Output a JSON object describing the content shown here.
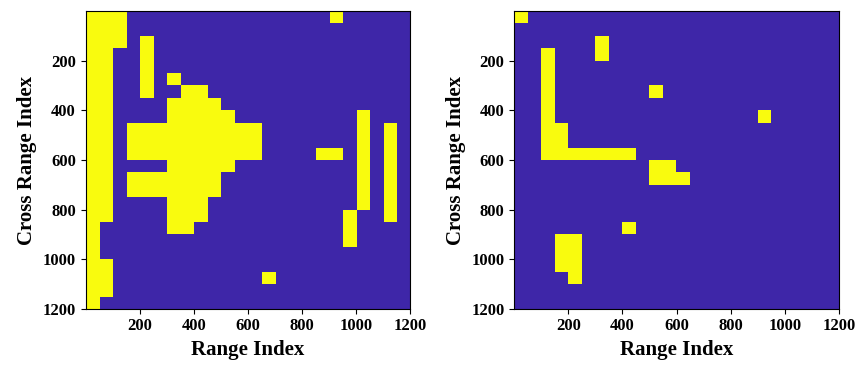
{
  "chart_data": [
    {
      "type": "heatmap",
      "xlabel": "Range Index",
      "ylabel": "Cross Range Index",
      "xlim": [
        0,
        1200
      ],
      "ylim": [
        1200,
        0
      ],
      "xticks": [
        200,
        400,
        600,
        800,
        1000,
        1200
      ],
      "yticks": [
        200,
        400,
        600,
        800,
        1000,
        1200
      ],
      "colors": [
        "#3e26a8",
        "#f9fb0e"
      ],
      "cells": [
        [
          1,
          1,
          1,
          0,
          0,
          0,
          0,
          0,
          0,
          0,
          0,
          0,
          0,
          0,
          0,
          0,
          0,
          0,
          1,
          0,
          0,
          0,
          0,
          0
        ],
        [
          1,
          1,
          1,
          0,
          0,
          0,
          0,
          0,
          0,
          0,
          0,
          0,
          0,
          0,
          0,
          0,
          0,
          0,
          0,
          0,
          0,
          0,
          0,
          0
        ],
        [
          1,
          1,
          1,
          0,
          1,
          0,
          0,
          0,
          0,
          0,
          0,
          0,
          0,
          0,
          0,
          0,
          0,
          0,
          0,
          0,
          0,
          0,
          0,
          0
        ],
        [
          1,
          1,
          0,
          0,
          1,
          0,
          0,
          0,
          0,
          0,
          0,
          0,
          0,
          0,
          0,
          0,
          0,
          0,
          0,
          0,
          0,
          0,
          0,
          0
        ],
        [
          1,
          1,
          0,
          0,
          1,
          0,
          0,
          0,
          0,
          0,
          0,
          0,
          0,
          0,
          0,
          0,
          0,
          0,
          0,
          0,
          0,
          0,
          0,
          0
        ],
        [
          1,
          1,
          0,
          0,
          1,
          0,
          1,
          0,
          0,
          0,
          0,
          0,
          0,
          0,
          0,
          0,
          0,
          0,
          0,
          0,
          0,
          0,
          0,
          0
        ],
        [
          1,
          1,
          0,
          0,
          1,
          0,
          0,
          1,
          1,
          0,
          0,
          0,
          0,
          0,
          0,
          0,
          0,
          0,
          0,
          0,
          0,
          0,
          0,
          0
        ],
        [
          1,
          1,
          0,
          0,
          0,
          0,
          1,
          1,
          1,
          1,
          0,
          0,
          0,
          0,
          0,
          0,
          0,
          0,
          0,
          0,
          0,
          0,
          0,
          0
        ],
        [
          1,
          1,
          0,
          0,
          0,
          0,
          1,
          1,
          1,
          1,
          1,
          0,
          0,
          0,
          0,
          0,
          0,
          0,
          0,
          0,
          1,
          0,
          0,
          0
        ],
        [
          1,
          1,
          0,
          1,
          1,
          1,
          1,
          1,
          1,
          1,
          1,
          1,
          1,
          0,
          0,
          0,
          0,
          0,
          0,
          0,
          1,
          0,
          1,
          0
        ],
        [
          1,
          1,
          0,
          1,
          1,
          1,
          1,
          1,
          1,
          1,
          1,
          1,
          1,
          0,
          0,
          0,
          0,
          0,
          0,
          0,
          1,
          0,
          1,
          0
        ],
        [
          1,
          1,
          0,
          1,
          1,
          1,
          1,
          1,
          1,
          1,
          1,
          1,
          1,
          0,
          0,
          0,
          0,
          1,
          1,
          0,
          1,
          0,
          1,
          0
        ],
        [
          1,
          1,
          0,
          0,
          0,
          0,
          1,
          1,
          1,
          1,
          1,
          0,
          0,
          0,
          0,
          0,
          0,
          0,
          0,
          0,
          1,
          0,
          1,
          0
        ],
        [
          1,
          1,
          0,
          1,
          1,
          1,
          1,
          1,
          1,
          1,
          0,
          0,
          0,
          0,
          0,
          0,
          0,
          0,
          0,
          0,
          1,
          0,
          1,
          0
        ],
        [
          1,
          1,
          0,
          1,
          1,
          1,
          1,
          1,
          1,
          1,
          0,
          0,
          0,
          0,
          0,
          0,
          0,
          0,
          0,
          0,
          1,
          0,
          1,
          0
        ],
        [
          1,
          1,
          0,
          0,
          0,
          0,
          1,
          1,
          1,
          0,
          0,
          0,
          0,
          0,
          0,
          0,
          0,
          0,
          0,
          0,
          1,
          0,
          1,
          0
        ],
        [
          1,
          1,
          0,
          0,
          0,
          0,
          1,
          1,
          1,
          0,
          0,
          0,
          0,
          0,
          0,
          0,
          0,
          0,
          0,
          1,
          0,
          0,
          1,
          0
        ],
        [
          1,
          0,
          0,
          0,
          0,
          0,
          1,
          1,
          0,
          0,
          0,
          0,
          0,
          0,
          0,
          0,
          0,
          0,
          0,
          1,
          0,
          0,
          0,
          0
        ],
        [
          1,
          0,
          0,
          0,
          0,
          0,
          0,
          0,
          0,
          0,
          0,
          0,
          0,
          0,
          0,
          0,
          0,
          0,
          0,
          1,
          0,
          0,
          0,
          0
        ],
        [
          1,
          0,
          0,
          0,
          0,
          0,
          0,
          0,
          0,
          0,
          0,
          0,
          0,
          0,
          0,
          0,
          0,
          0,
          0,
          0,
          0,
          0,
          0,
          0
        ],
        [
          1,
          1,
          0,
          0,
          0,
          0,
          0,
          0,
          0,
          0,
          0,
          0,
          0,
          0,
          0,
          0,
          0,
          0,
          0,
          0,
          0,
          0,
          0,
          0
        ],
        [
          1,
          1,
          0,
          0,
          0,
          0,
          0,
          0,
          0,
          0,
          0,
          0,
          0,
          1,
          0,
          0,
          0,
          0,
          0,
          0,
          0,
          0,
          0,
          0
        ],
        [
          1,
          1,
          0,
          0,
          0,
          0,
          0,
          0,
          0,
          0,
          0,
          0,
          0,
          0,
          0,
          0,
          0,
          0,
          0,
          0,
          0,
          0,
          0,
          0
        ],
        [
          1,
          0,
          0,
          0,
          0,
          0,
          0,
          0,
          0,
          0,
          0,
          0,
          0,
          0,
          0,
          0,
          0,
          0,
          0,
          0,
          0,
          0,
          0,
          0
        ]
      ]
    },
    {
      "type": "heatmap",
      "xlabel": "Range Index",
      "ylabel": "Cross Range Index",
      "xlim": [
        0,
        1200
      ],
      "ylim": [
        1200,
        0
      ],
      "xticks": [
        200,
        400,
        600,
        800,
        1000,
        1200
      ],
      "yticks": [
        200,
        400,
        600,
        800,
        1000,
        1200
      ],
      "colors": [
        "#3e26a8",
        "#f9fb0e"
      ],
      "cells": [
        [
          1,
          0,
          0,
          0,
          0,
          0,
          0,
          0,
          0,
          0,
          0,
          0,
          0,
          0,
          0,
          0,
          0,
          0,
          0,
          0,
          0,
          0,
          0,
          0
        ],
        [
          0,
          0,
          0,
          0,
          0,
          0,
          0,
          0,
          0,
          0,
          0,
          0,
          0,
          0,
          0,
          0,
          0,
          0,
          0,
          0,
          0,
          0,
          0,
          0
        ],
        [
          0,
          0,
          0,
          0,
          0,
          0,
          1,
          0,
          0,
          0,
          0,
          0,
          0,
          0,
          0,
          0,
          0,
          0,
          0,
          0,
          0,
          0,
          0,
          0
        ],
        [
          0,
          0,
          1,
          0,
          0,
          0,
          1,
          0,
          0,
          0,
          0,
          0,
          0,
          0,
          0,
          0,
          0,
          0,
          0,
          0,
          0,
          0,
          0,
          0
        ],
        [
          0,
          0,
          1,
          0,
          0,
          0,
          0,
          0,
          0,
          0,
          0,
          0,
          0,
          0,
          0,
          0,
          0,
          0,
          0,
          0,
          0,
          0,
          0,
          0
        ],
        [
          0,
          0,
          1,
          0,
          0,
          0,
          0,
          0,
          0,
          0,
          0,
          0,
          0,
          0,
          0,
          0,
          0,
          0,
          0,
          0,
          0,
          0,
          0,
          0
        ],
        [
          0,
          0,
          1,
          0,
          0,
          0,
          0,
          0,
          0,
          0,
          1,
          0,
          0,
          0,
          0,
          0,
          0,
          0,
          0,
          0,
          0,
          0,
          0,
          0
        ],
        [
          0,
          0,
          1,
          0,
          0,
          0,
          0,
          0,
          0,
          0,
          0,
          0,
          0,
          0,
          0,
          0,
          0,
          0,
          0,
          0,
          0,
          0,
          0,
          0
        ],
        [
          0,
          0,
          1,
          0,
          0,
          0,
          0,
          0,
          0,
          0,
          0,
          0,
          0,
          0,
          0,
          0,
          0,
          0,
          1,
          0,
          0,
          0,
          0,
          0
        ],
        [
          0,
          0,
          1,
          1,
          0,
          0,
          0,
          0,
          0,
          0,
          0,
          0,
          0,
          0,
          0,
          0,
          0,
          0,
          0,
          0,
          0,
          0,
          0,
          0
        ],
        [
          0,
          0,
          1,
          1,
          0,
          0,
          0,
          0,
          0,
          0,
          0,
          0,
          0,
          0,
          0,
          0,
          0,
          0,
          0,
          0,
          0,
          0,
          0,
          0
        ],
        [
          0,
          0,
          1,
          1,
          1,
          1,
          1,
          1,
          1,
          0,
          0,
          0,
          0,
          0,
          0,
          0,
          0,
          0,
          0,
          0,
          0,
          0,
          0,
          0
        ],
        [
          0,
          0,
          0,
          0,
          0,
          0,
          0,
          0,
          0,
          0,
          1,
          1,
          0,
          0,
          0,
          0,
          0,
          0,
          0,
          0,
          0,
          0,
          0,
          0
        ],
        [
          0,
          0,
          0,
          0,
          0,
          0,
          0,
          0,
          0,
          0,
          1,
          1,
          1,
          0,
          0,
          0,
          0,
          0,
          0,
          0,
          0,
          0,
          0,
          0
        ],
        [
          0,
          0,
          0,
          0,
          0,
          0,
          0,
          0,
          0,
          0,
          0,
          0,
          0,
          0,
          0,
          0,
          0,
          0,
          0,
          0,
          0,
          0,
          0,
          0
        ],
        [
          0,
          0,
          0,
          0,
          0,
          0,
          0,
          0,
          0,
          0,
          0,
          0,
          0,
          0,
          0,
          0,
          0,
          0,
          0,
          0,
          0,
          0,
          0,
          0
        ],
        [
          0,
          0,
          0,
          0,
          0,
          0,
          0,
          0,
          0,
          0,
          0,
          0,
          0,
          0,
          0,
          0,
          0,
          0,
          0,
          0,
          0,
          0,
          0,
          0
        ],
        [
          0,
          0,
          0,
          0,
          0,
          0,
          0,
          0,
          1,
          0,
          0,
          0,
          0,
          0,
          0,
          0,
          0,
          0,
          0,
          0,
          0,
          0,
          0,
          0
        ],
        [
          0,
          0,
          0,
          1,
          1,
          0,
          0,
          0,
          0,
          0,
          0,
          0,
          0,
          0,
          0,
          0,
          0,
          0,
          0,
          0,
          0,
          0,
          0,
          0
        ],
        [
          0,
          0,
          0,
          1,
          1,
          0,
          0,
          0,
          0,
          0,
          0,
          0,
          0,
          0,
          0,
          0,
          0,
          0,
          0,
          0,
          0,
          0,
          0,
          0
        ],
        [
          0,
          0,
          0,
          1,
          1,
          0,
          0,
          0,
          0,
          0,
          0,
          0,
          0,
          0,
          0,
          0,
          0,
          0,
          0,
          0,
          0,
          0,
          0,
          0
        ],
        [
          0,
          0,
          0,
          0,
          1,
          0,
          0,
          0,
          0,
          0,
          0,
          0,
          0,
          0,
          0,
          0,
          0,
          0,
          0,
          0,
          0,
          0,
          0,
          0
        ],
        [
          0,
          0,
          0,
          0,
          0,
          0,
          0,
          0,
          0,
          0,
          0,
          0,
          0,
          0,
          0,
          0,
          0,
          0,
          0,
          0,
          0,
          0,
          0,
          0
        ],
        [
          0,
          0,
          0,
          0,
          0,
          0,
          0,
          0,
          0,
          0,
          0,
          0,
          0,
          0,
          0,
          0,
          0,
          0,
          0,
          0,
          0,
          0,
          0,
          0
        ]
      ]
    }
  ]
}
